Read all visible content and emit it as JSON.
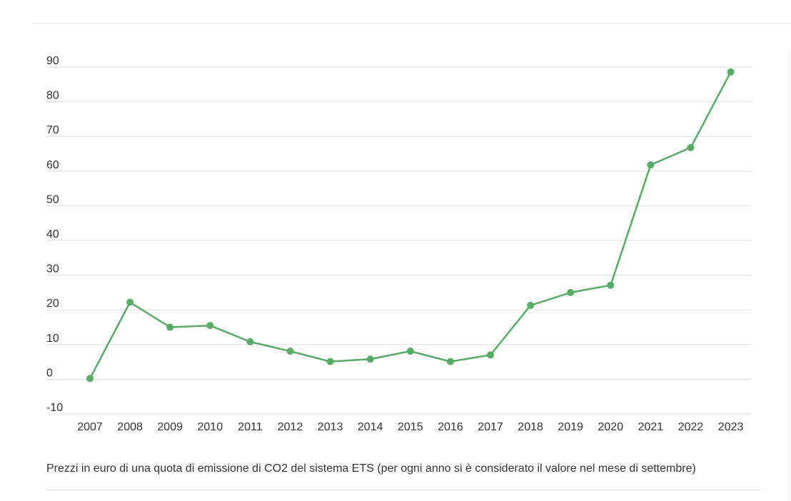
{
  "caption": "Prezzi in euro di una quota di emissione di CO2 del sistema ETS (per ogni anno si è considerato il valore nel mese di settembre)",
  "chart_data": {
    "type": "line",
    "title": "",
    "xlabel": "",
    "ylabel": "",
    "categories": [
      "2007",
      "2008",
      "2009",
      "2010",
      "2011",
      "2012",
      "2013",
      "2014",
      "2015",
      "2016",
      "2017",
      "2018",
      "2019",
      "2020",
      "2021",
      "2022",
      "2023"
    ],
    "series": [
      {
        "values": [
          0.2,
          22.2,
          15.0,
          15.5,
          10.8,
          8.1,
          5.1,
          5.8,
          8.1,
          5.1,
          7.0,
          21.3,
          25.0,
          27.1,
          61.8,
          66.8,
          88.6
        ]
      }
    ],
    "ylim": [
      -10,
      90
    ],
    "yticks": [
      -10,
      0,
      10,
      20,
      30,
      40,
      50,
      60,
      70,
      80,
      90
    ],
    "grid": true,
    "legend": "none",
    "line_color": "#5aaa6a",
    "grid_color": "#dedede"
  }
}
